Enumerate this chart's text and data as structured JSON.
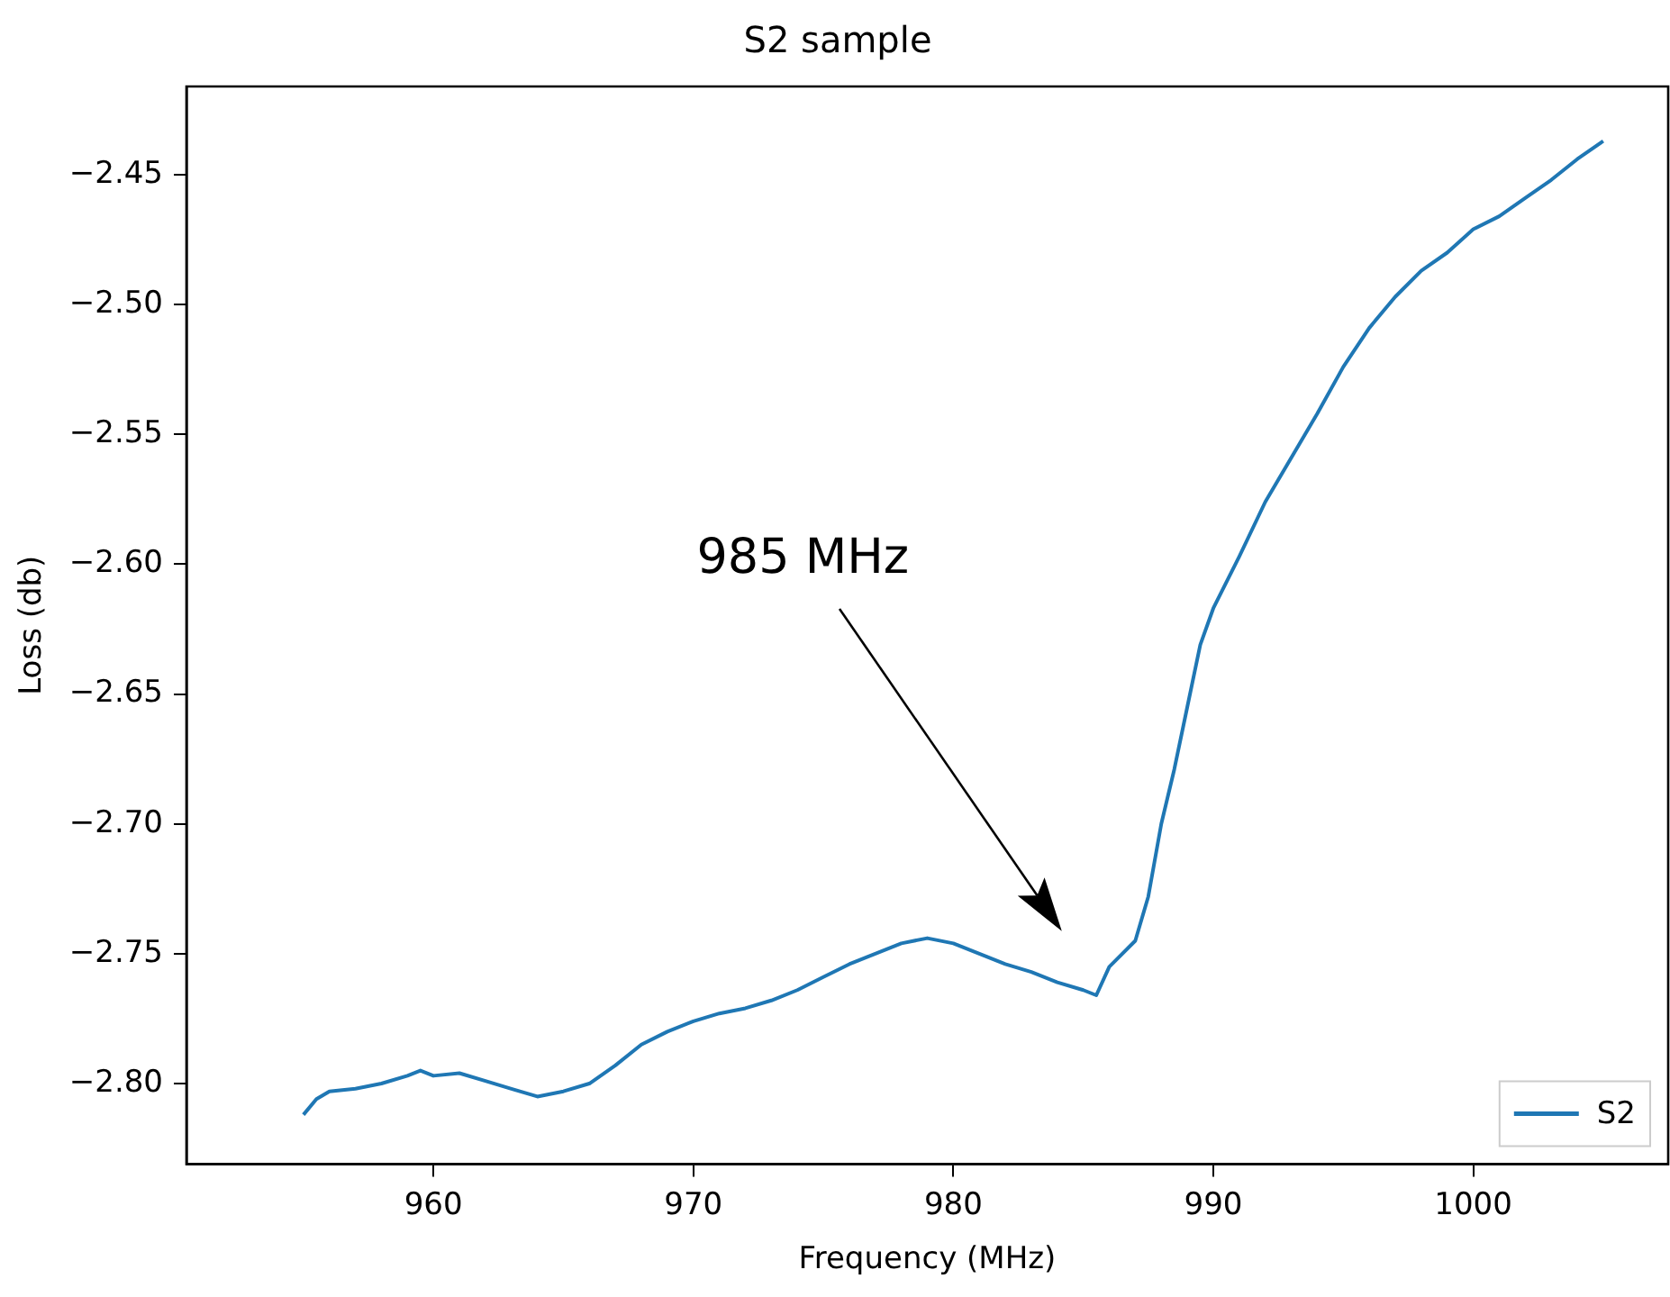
{
  "chart_data": {
    "type": "line",
    "title": "S2 sample",
    "xlabel": "Frequency (MHz)",
    "ylabel": "Loss (db)",
    "xlim": [
      950.5,
      1007.5
    ],
    "xticks": [
      960,
      970,
      980,
      990,
      1000
    ],
    "ylim": [
      -2.831,
      -2.416
    ],
    "yticks": [
      {
        "value": -2.8,
        "label": "−2.80"
      },
      {
        "value": -2.75,
        "label": "−2.75"
      },
      {
        "value": -2.7,
        "label": "−2.70"
      },
      {
        "value": -2.65,
        "label": "−2.65"
      },
      {
        "value": -2.6,
        "label": "−2.60"
      },
      {
        "value": -2.55,
        "label": "−2.55"
      },
      {
        "value": -2.5,
        "label": "−2.50"
      },
      {
        "value": -2.45,
        "label": "−2.45"
      }
    ],
    "grid": false,
    "legend": "bottom right",
    "marker": "none",
    "line_style": "solid",
    "annotations": [
      "985 MHz"
    ],
    "series": [
      {
        "name": "S2",
        "color": "#1f77b4",
        "x": [
          955,
          955.5,
          956,
          957,
          958,
          959,
          959.5,
          960,
          961,
          962,
          963,
          964,
          965,
          966,
          967,
          968,
          969,
          970,
          971,
          972,
          973,
          974,
          975,
          976,
          977,
          978,
          979,
          980,
          981,
          982,
          983,
          984,
          985,
          985.5,
          986,
          987,
          987.5,
          988,
          988.5,
          989,
          989.5,
          990,
          991,
          992,
          993,
          994,
          995,
          996,
          997,
          998,
          999,
          1000,
          1001,
          1002,
          1003,
          1004,
          1005
        ],
        "values": [
          -2.812,
          -2.806,
          -2.803,
          -2.802,
          -2.8,
          -2.797,
          -2.795,
          -2.797,
          -2.796,
          -2.799,
          -2.802,
          -2.805,
          -2.803,
          -2.8,
          -2.793,
          -2.785,
          -2.78,
          -2.776,
          -2.773,
          -2.771,
          -2.768,
          -2.764,
          -2.759,
          -2.754,
          -2.75,
          -2.746,
          -2.744,
          -2.746,
          -2.75,
          -2.754,
          -2.757,
          -2.761,
          -2.764,
          -2.766,
          -2.755,
          -2.745,
          -2.728,
          -2.7,
          -2.679,
          -2.655,
          -2.631,
          -2.617,
          -2.597,
          -2.576,
          -2.559,
          -2.542,
          -2.524,
          -2.509,
          -2.497,
          -2.487,
          -2.48,
          -2.471,
          -2.466,
          -2.459,
          -2.452,
          -2.444,
          -2.437
        ]
      }
    ]
  }
}
